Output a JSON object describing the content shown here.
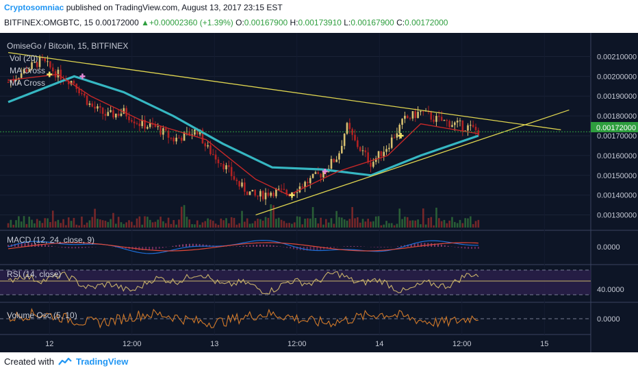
{
  "header": {
    "author": "Cryptosomniac",
    "published_text": "published on TradingView.com, August 13, 2017 23:15 EST",
    "symbol": "BITFINEX:OMGBTC, 15",
    "last": "0.00172000",
    "change": "+0.00002360 (+1.39%)",
    "o_label": "O:",
    "o_value": "0.00167900",
    "h_label": "H:",
    "h_value": "0.00173910",
    "l_label": "L:",
    "l_value": "0.00167900",
    "c_label": "C:",
    "c_value": "0.00172000"
  },
  "main_pane": {
    "title": "OmiseGo / Bitcoin, 15, BITFINEX",
    "studies": [
      "Vol (20)",
      "MA Cross",
      "MA Cross"
    ],
    "price_labels": [
      "0.00210000",
      "0.00200000",
      "0.00190000",
      "0.00180000",
      "0.00170000",
      "0.00160000",
      "0.00150000",
      "0.00140000",
      "0.00130000"
    ],
    "last_price_label": "0.00172000"
  },
  "macd_pane": {
    "title": "MACD (12, 24, close, 9)",
    "axis_label": "0.0000"
  },
  "rsi_pane": {
    "title": "RSI (14, close)",
    "axis_label": "40.0000"
  },
  "vosc_pane": {
    "title": "Volume Osc (5, 10)",
    "axis_label": "0.0000"
  },
  "time_labels": [
    "12",
    "12:00",
    "13",
    "12:00",
    "14",
    "12:00",
    "15"
  ],
  "footer": {
    "created_with": "Created with",
    "brand": "TradingView"
  },
  "colors": {
    "up_candle": "#d8c070",
    "down_candle": "#b22222",
    "ma_fast": "#c62828",
    "ma_slow": "#36b7c2",
    "trendline": "#e0d650",
    "rsi": "#c9b36a",
    "vosc": "#d27a2a",
    "macd_line": "#1e6fd9",
    "signal_line": "#e2493a",
    "pane_bg": "#0d1526"
  },
  "chart_data": {
    "type": "candlestick",
    "title": "OmiseGo / Bitcoin, 15, BITFINEX",
    "ylim": [
      0.00125,
      0.00215
    ],
    "last_price": 0.00172,
    "close_path": [
      [
        0.0,
        0.00197
      ],
      [
        0.1,
        0.00203
      ],
      [
        0.2,
        0.00208
      ],
      [
        0.3,
        0.00201
      ],
      [
        0.4,
        0.00197
      ],
      [
        0.5,
        0.00185
      ],
      [
        0.6,
        0.0018
      ],
      [
        0.7,
        0.00182
      ],
      [
        0.8,
        0.00176
      ],
      [
        0.9,
        0.00174
      ],
      [
        1.0,
        0.00168
      ],
      [
        1.1,
        0.00171
      ],
      [
        1.15,
        0.00173
      ],
      [
        1.2,
        0.00164
      ],
      [
        1.3,
        0.00156
      ],
      [
        1.4,
        0.00145
      ],
      [
        1.5,
        0.00139
      ],
      [
        1.6,
        0.00142
      ],
      [
        1.7,
        0.00141
      ],
      [
        1.8,
        0.00146
      ],
      [
        1.9,
        0.00151
      ],
      [
        2.0,
        0.0016
      ],
      [
        2.05,
        0.00175
      ],
      [
        2.1,
        0.00167
      ],
      [
        2.2,
        0.00156
      ],
      [
        2.3,
        0.00165
      ],
      [
        2.4,
        0.00178
      ],
      [
        2.5,
        0.00182
      ],
      [
        2.6,
        0.00178
      ],
      [
        2.7,
        0.00176
      ],
      [
        2.8,
        0.00174
      ],
      [
        2.85,
        0.00172
      ]
    ],
    "ma_fast_path": [
      [
        0.0,
        0.00198
      ],
      [
        0.3,
        0.00201
      ],
      [
        0.5,
        0.0019
      ],
      [
        0.8,
        0.00178
      ],
      [
        1.2,
        0.00168
      ],
      [
        1.5,
        0.00148
      ],
      [
        1.7,
        0.0014
      ],
      [
        2.0,
        0.00152
      ],
      [
        2.3,
        0.0016
      ],
      [
        2.5,
        0.00176
      ],
      [
        2.85,
        0.00171
      ]
    ],
    "ma_slow_path": [
      [
        0.0,
        0.00187
      ],
      [
        0.4,
        0.002
      ],
      [
        0.7,
        0.00192
      ],
      [
        1.0,
        0.0018
      ],
      [
        1.3,
        0.00166
      ],
      [
        1.6,
        0.00154
      ],
      [
        1.9,
        0.00153
      ],
      [
        2.2,
        0.0015
      ],
      [
        2.5,
        0.0016
      ],
      [
        2.85,
        0.0017
      ]
    ],
    "trendline_upper": [
      [
        0.0,
        0.00212
      ],
      [
        3.35,
        0.00173
      ]
    ],
    "trendline_lower": [
      [
        1.5,
        0.0013
      ],
      [
        3.4,
        0.00183
      ]
    ]
  }
}
